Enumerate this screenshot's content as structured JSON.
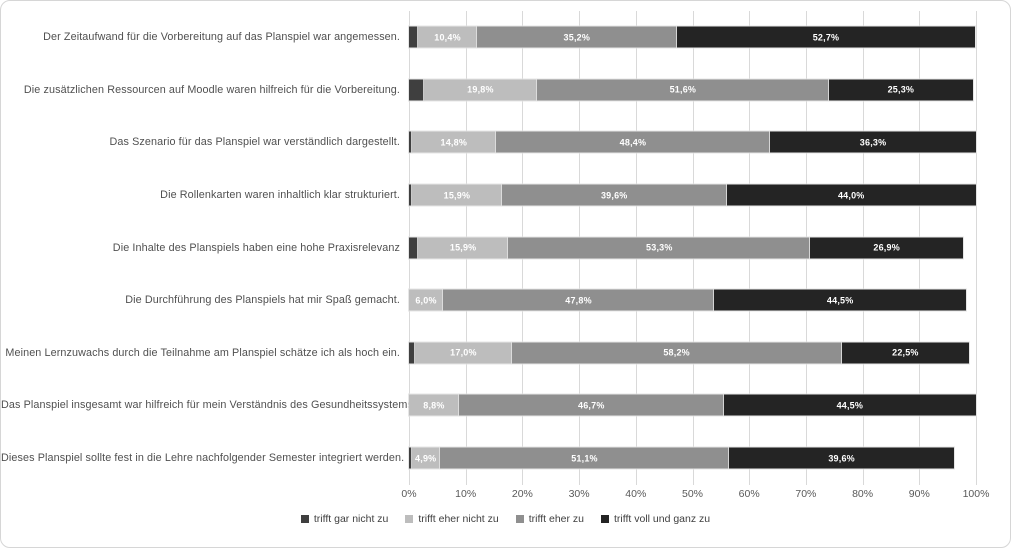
{
  "chart_data": {
    "type": "bar",
    "orientation": "horizontal",
    "stacked": true,
    "title": "",
    "xlabel": "",
    "ylabel": "",
    "xlim": [
      0,
      100
    ],
    "grid": true,
    "legend_position": "bottom",
    "categories": [
      "Der Zeitaufwand für die Vorbereitung auf das Planspiel war angemessen.",
      "Die zusätzlichen Ressourcen auf Moodle waren hilfreich für die Vorbereitung.",
      "Das Szenario für das Planspiel war verständlich dargestellt.",
      "Die Rollenkarten waren inhaltlich klar strukturiert.",
      "Die Inhalte des Planspiels haben eine hohe Praxisrelevanz",
      "Die Durchführung des Planspiels hat mir Spaß gemacht.",
      "Meinen Lernzuwachs durch die Teilnahme am Planspiel schätze ich als hoch ein.",
      "Das Planspiel insgesamt war hilfreich für mein Verständnis des Gesundheitssystems.",
      "Dieses Planspiel sollte fest in die Lehre nachfolgender Semester integriert werden."
    ],
    "series": [
      {
        "name": "trifft gar nicht zu",
        "color": "#3f3f3f",
        "show_labels": false,
        "values": [
          1.6,
          2.7,
          0.5,
          0.5,
          1.6,
          0.0,
          1.1,
          0.0,
          0.5
        ]
      },
      {
        "name": "trifft eher nicht zu",
        "color": "#bdbdbd",
        "show_labels": true,
        "values": [
          10.4,
          19.8,
          14.8,
          15.9,
          15.9,
          6.0,
          17.0,
          8.8,
          4.9
        ]
      },
      {
        "name": "trifft eher zu",
        "color": "#8f8f8f",
        "show_labels": true,
        "values": [
          35.2,
          51.6,
          48.4,
          39.6,
          53.3,
          47.8,
          58.2,
          46.7,
          51.1
        ]
      },
      {
        "name": "trifft voll und ganz zu",
        "color": "#242424",
        "show_labels": true,
        "values": [
          52.7,
          25.3,
          36.3,
          44.0,
          26.9,
          44.5,
          22.5,
          44.5,
          39.6
        ]
      }
    ],
    "x_axis": {
      "ticks": [
        "0%",
        "10%",
        "20%",
        "30%",
        "40%",
        "50%",
        "60%",
        "70%",
        "80%",
        "90%",
        "100%"
      ]
    },
    "legend": [
      "trifft gar nicht zu",
      "trifft eher nicht zu",
      "trifft eher zu",
      "trifft voll und ganz zu"
    ],
    "colors": {
      "grid_line": "#d9d9d9",
      "frame_border": "#d6d6d6",
      "category_text": "#505050",
      "axis_text": "#595959",
      "bar_label_text": "#ffffff"
    }
  }
}
